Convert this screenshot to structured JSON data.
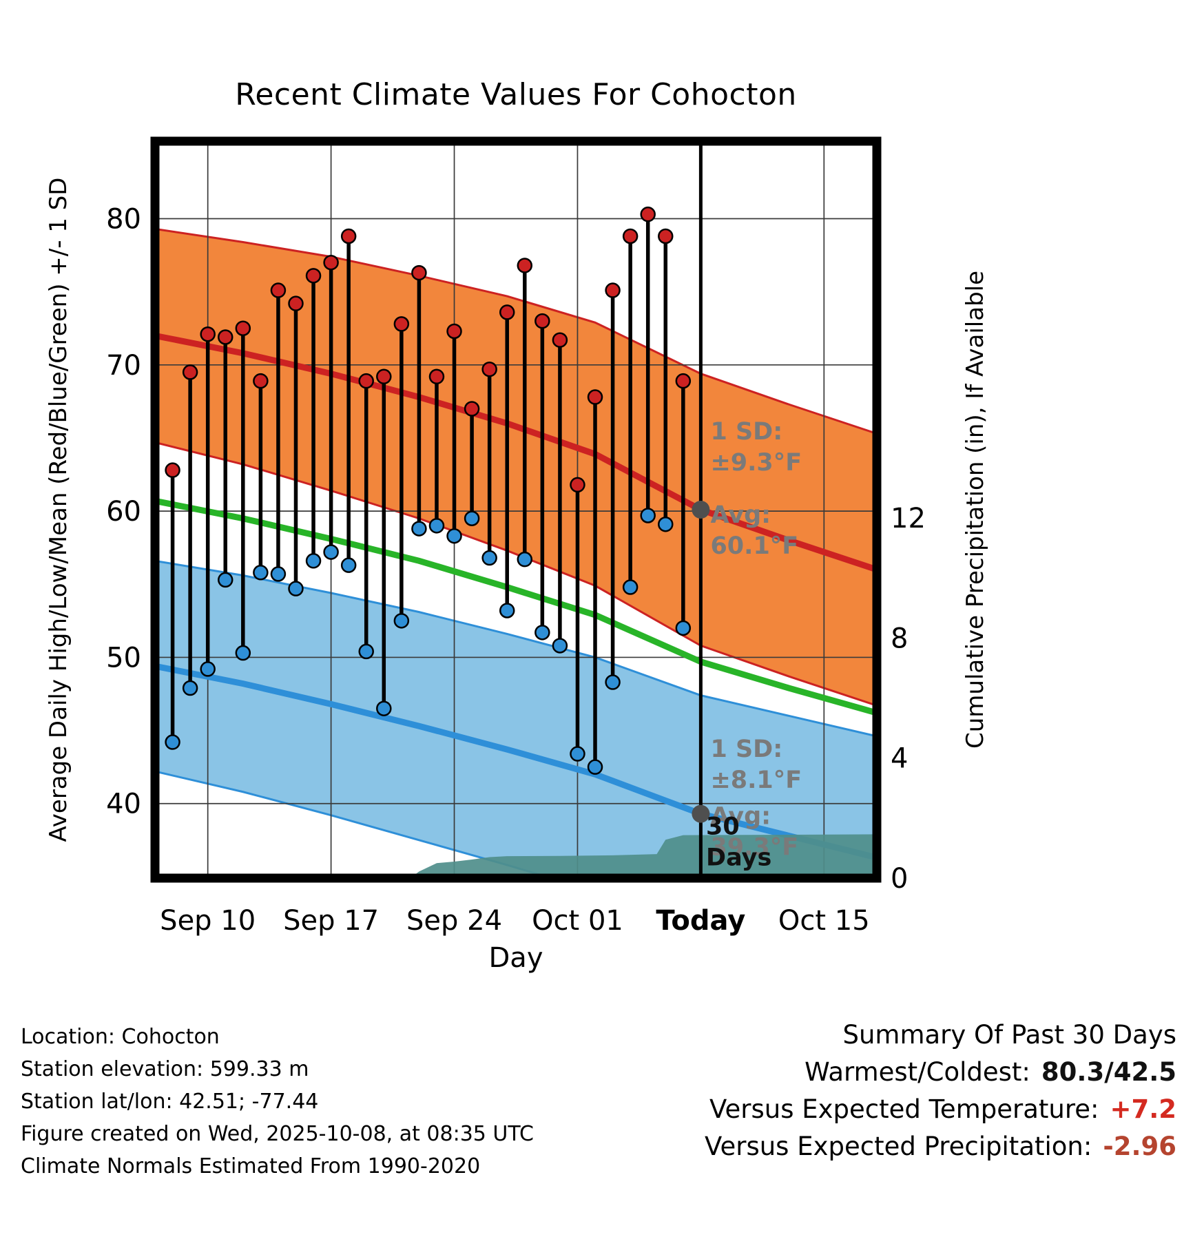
{
  "title": "Recent Climate Values For Cohocton",
  "axes": {
    "x_label": "Day",
    "left_label": "Average Daily High/Low/Mean (Red/Blue/Green) +/- 1 SD",
    "right_label": "Cumulative Precipitation (in), If Available"
  },
  "chart_data": {
    "type": "line",
    "title": "Recent Climate Values For Cohocton",
    "x_domain": [
      0,
      41
    ],
    "x_domain_note": "day 0 = Sep 07, day 41 = Oct 18, today = Oct 08",
    "temp_domain": [
      34.9,
      85.3
    ],
    "precip_domain": [
      0,
      24.55
    ],
    "temp_ticks": [
      40,
      50,
      60,
      70,
      80
    ],
    "precip_ticks": [
      0,
      4,
      8,
      12
    ],
    "x_ticks": [
      {
        "day": 3,
        "label": "Sep 10",
        "bold": false
      },
      {
        "day": 10,
        "label": "Sep 17",
        "bold": false
      },
      {
        "day": 17,
        "label": "Sep 24",
        "bold": false
      },
      {
        "day": 24,
        "label": "Oct 01",
        "bold": false
      },
      {
        "day": 31,
        "label": "Today",
        "bold": true
      },
      {
        "day": 38,
        "label": "Oct 15",
        "bold": false
      }
    ],
    "today_day": 31,
    "daily": {
      "start_day": 1,
      "dates": [
        "Sep 08",
        "Sep 09",
        "Sep 10",
        "Sep 11",
        "Sep 12",
        "Sep 13",
        "Sep 14",
        "Sep 15",
        "Sep 16",
        "Sep 17",
        "Sep 18",
        "Sep 19",
        "Sep 20",
        "Sep 21",
        "Sep 22",
        "Sep 23",
        "Sep 24",
        "Sep 25",
        "Sep 26",
        "Sep 27",
        "Sep 28",
        "Sep 29",
        "Sep 30",
        "Oct 01",
        "Oct 02",
        "Oct 03",
        "Oct 04",
        "Oct 05",
        "Oct 06",
        "Oct 07"
      ],
      "highs": [
        62.8,
        69.5,
        72.1,
        71.9,
        72.5,
        68.9,
        75.1,
        74.2,
        76.1,
        77.0,
        78.8,
        68.9,
        69.2,
        72.8,
        76.3,
        69.2,
        72.3,
        67.0,
        69.7,
        73.6,
        76.8,
        73.0,
        71.7,
        61.8,
        67.8,
        75.1,
        78.8,
        80.3,
        78.8,
        68.9
      ],
      "lows": [
        44.2,
        47.9,
        49.2,
        55.3,
        50.3,
        55.8,
        55.7,
        54.7,
        56.6,
        57.2,
        56.3,
        50.4,
        46.5,
        52.5,
        58.8,
        59.0,
        58.3,
        59.5,
        56.8,
        53.2,
        56.7,
        51.7,
        50.8,
        43.4,
        42.5,
        48.3,
        54.8,
        59.7,
        59.1,
        52.0
      ]
    },
    "high_band": [
      {
        "d": 0,
        "c": 72.0,
        "sd": 7.3
      },
      {
        "d": 5,
        "c": 70.8,
        "sd": 7.6
      },
      {
        "d": 10,
        "c": 69.4,
        "sd": 8.0
      },
      {
        "d": 15,
        "c": 67.8,
        "sd": 8.3
      },
      {
        "d": 20,
        "c": 66.0,
        "sd": 8.7
      },
      {
        "d": 25,
        "c": 63.9,
        "sd": 9.0
      },
      {
        "d": 31,
        "c": 60.1,
        "sd": 9.3
      },
      {
        "d": 36,
        "c": 58.0,
        "sd": 9.3
      },
      {
        "d": 41,
        "c": 56.0,
        "sd": 9.3
      }
    ],
    "low_band": [
      {
        "d": 0,
        "c": 49.4,
        "sd": 7.2
      },
      {
        "d": 5,
        "c": 48.2,
        "sd": 7.4
      },
      {
        "d": 10,
        "c": 46.8,
        "sd": 7.6
      },
      {
        "d": 15,
        "c": 45.3,
        "sd": 7.8
      },
      {
        "d": 20,
        "c": 43.7,
        "sd": 7.9
      },
      {
        "d": 25,
        "c": 42.0,
        "sd": 8.0
      },
      {
        "d": 31,
        "c": 39.3,
        "sd": 8.1
      },
      {
        "d": 36,
        "c": 37.8,
        "sd": 8.2
      },
      {
        "d": 41,
        "c": 36.3,
        "sd": 8.3
      }
    ],
    "mean_line": [
      {
        "d": 0,
        "v": 60.7
      },
      {
        "d": 5,
        "v": 59.5
      },
      {
        "d": 10,
        "v": 58.1
      },
      {
        "d": 15,
        "v": 56.6
      },
      {
        "d": 20,
        "v": 54.8
      },
      {
        "d": 25,
        "v": 52.9
      },
      {
        "d": 31,
        "v": 49.7
      },
      {
        "d": 36,
        "v": 47.9
      },
      {
        "d": 41,
        "v": 46.2
      }
    ],
    "precip_cumulative": [
      {
        "d": 14.5,
        "v": 0
      },
      {
        "d": 15,
        "v": 0.22
      },
      {
        "d": 16,
        "v": 0.5
      },
      {
        "d": 17,
        "v": 0.55
      },
      {
        "d": 18,
        "v": 0.62
      },
      {
        "d": 19,
        "v": 0.7
      },
      {
        "d": 20,
        "v": 0.73
      },
      {
        "d": 23,
        "v": 0.74
      },
      {
        "d": 26,
        "v": 0.76
      },
      {
        "d": 28.5,
        "v": 0.8
      },
      {
        "d": 29,
        "v": 1.28
      },
      {
        "d": 30,
        "v": 1.43
      },
      {
        "d": 41,
        "v": 1.46
      }
    ],
    "today_markers": [
      {
        "day": 31,
        "temp": 60.1
      },
      {
        "day": 31,
        "temp": 39.3
      }
    ],
    "annotations": [
      {
        "lines": [
          "1 SD:",
          "±9.3°F"
        ],
        "day": 31.55,
        "temp": 64.9,
        "style": "gray"
      },
      {
        "lines": [
          "Avg:",
          "60.1°F"
        ],
        "day": 31.55,
        "temp": 59.2,
        "style": "gray"
      },
      {
        "lines": [
          "1 SD:",
          "±8.1°F"
        ],
        "day": 31.55,
        "temp": 43.2,
        "style": "gray"
      },
      {
        "lines": [
          "Avg:",
          "39.3°F"
        ],
        "day": 31.55,
        "temp": 38.6,
        "style": "gray"
      },
      {
        "lines": [
          "30",
          "Days"
        ],
        "day": 31.3,
        "temp": 37.9,
        "style": "black"
      }
    ]
  },
  "colors": {
    "high_band_fill": "#f2863c",
    "high_line": "#cc2222",
    "low_band_fill": "#8ac4e6",
    "low_line": "#2e8fd8",
    "mean_line": "#28b428",
    "precip_fill": "#4f8e8b",
    "stem": "#000000",
    "high_dot": "#cc2222",
    "low_dot": "#2f8fd6",
    "gray_marker": "#4f4f4f",
    "annotation_gray": "#7a7a7a",
    "annotation_black": "#111111",
    "grid": "#3a3a3a",
    "frame": "#000000"
  },
  "footer": {
    "lines": [
      "Location: Cohocton",
      "Station elevation: 599.33 m",
      "Station lat/lon: 42.51; -77.44",
      "Figure created on Wed, 2025-10-08, at 08:35 UTC",
      "Climate Normals Estimated From 1990-2020"
    ]
  },
  "summary": {
    "heading": "Summary Of Past 30 Days",
    "rows": [
      {
        "label": "Warmest/Coldest:",
        "value": "80.3/42.5",
        "value_color": "#111111"
      },
      {
        "label": "Versus Expected Temperature:",
        "value": "+7.2",
        "value_color": "#d42a20"
      },
      {
        "label": "Versus Expected Precipitation:",
        "value": "-2.96",
        "value_color": "#b5442f"
      }
    ]
  }
}
